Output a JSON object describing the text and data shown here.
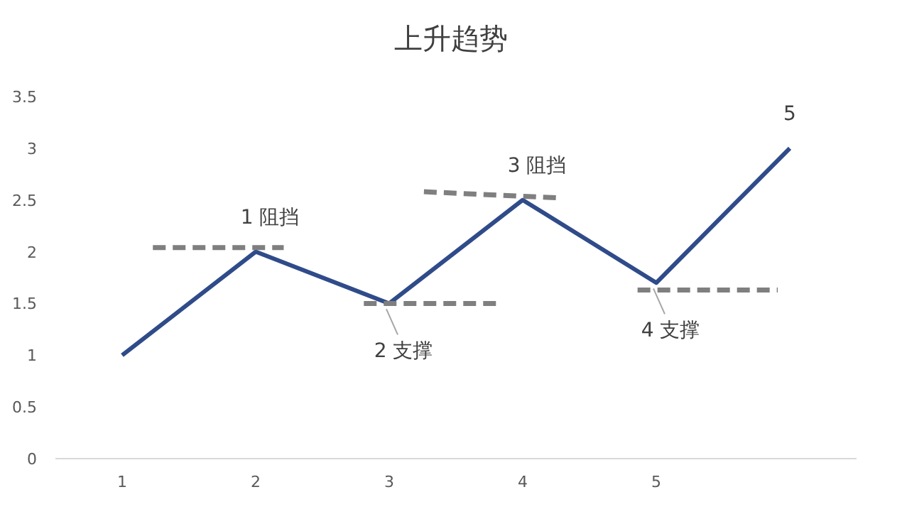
{
  "chart_data": {
    "type": "line",
    "title": "上升趋势",
    "xlim": [
      0.5,
      6.5
    ],
    "xticks": [
      1,
      2,
      3,
      4,
      5
    ],
    "ylim": [
      0,
      3.5
    ],
    "yticks": [
      0,
      0.5,
      1,
      1.5,
      2,
      2.5,
      3,
      3.5
    ],
    "grid": false,
    "marker": "none",
    "series": [
      {
        "color": "#2f4b8a",
        "line_style": "solid",
        "x": [
          1,
          2,
          3,
          4,
          5,
          6
        ],
        "values": [
          1,
          2,
          1.5,
          2.5,
          1.7,
          3
        ]
      },
      {
        "color": "#7f7f7f",
        "line_style": "dashed",
        "x": [
          1.23,
          2.21
        ],
        "values": [
          2.04,
          2.04
        ]
      },
      {
        "color": "#7f7f7f",
        "line_style": "dashed",
        "x": [
          2.81,
          3.84
        ],
        "values": [
          1.5,
          1.5
        ]
      },
      {
        "color": "#7f7f7f",
        "line_style": "dashed",
        "x": [
          3.26,
          4.27
        ],
        "values": [
          2.58,
          2.52
        ]
      },
      {
        "color": "#7f7f7f",
        "line_style": "dashed",
        "x": [
          4.86,
          5.91
        ],
        "values": [
          1.63,
          1.63
        ]
      }
    ],
    "annotations": [
      {
        "text": "1  阻挡",
        "x": 2,
        "y": 2
      },
      {
        "text": "2 支撑",
        "x": 3,
        "y": 1.5
      },
      {
        "text": "3 阻挡",
        "x": 4,
        "y": 2.5
      },
      {
        "text": "4 支撑",
        "x": 5,
        "y": 1.7
      },
      {
        "text": "5",
        "x": 6,
        "y": 3
      }
    ]
  }
}
